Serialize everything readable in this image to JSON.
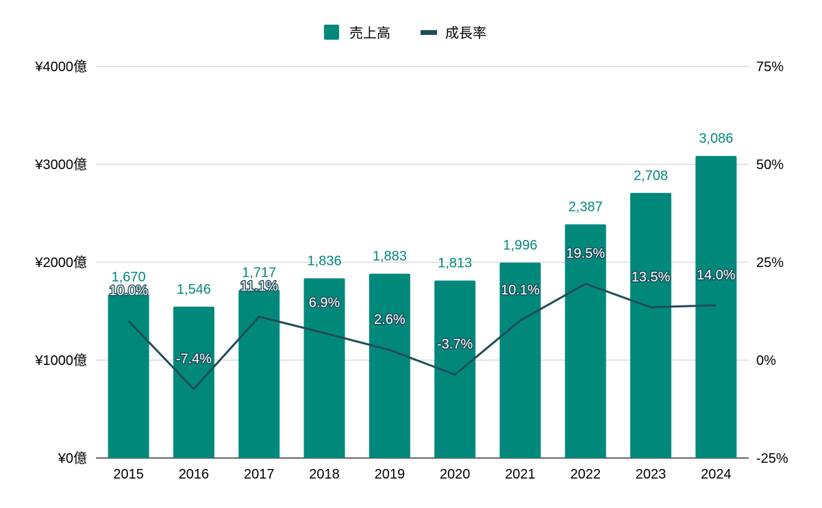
{
  "colors": {
    "bar": "#00897b",
    "line": "#1f4d57",
    "grid": "#c8c8c8",
    "axis": "#333333"
  },
  "legend": {
    "sales_label": "売上高",
    "growth_label": "成長率"
  },
  "chart_data": {
    "type": "bar",
    "categories": [
      "2015",
      "2016",
      "2017",
      "2018",
      "2019",
      "2020",
      "2021",
      "2022",
      "2023",
      "2024"
    ],
    "series": [
      {
        "name": "売上高",
        "type": "bar",
        "axis": "left",
        "values": [
          1670,
          1546,
          1717,
          1836,
          1883,
          1813,
          1996,
          2387,
          2708,
          3086
        ],
        "labels": [
          "1,670",
          "1,546",
          "1,717",
          "1,836",
          "1,883",
          "1,813",
          "1,996",
          "2,387",
          "2,708",
          "3,086"
        ]
      },
      {
        "name": "成長率",
        "type": "line",
        "axis": "right",
        "values": [
          10.0,
          -7.4,
          11.1,
          6.9,
          2.6,
          -3.7,
          10.1,
          19.5,
          13.5,
          14.0
        ],
        "labels": [
          "10.0%",
          "-7.4%",
          "11.1%",
          "6.9%",
          "2.6%",
          "-3.7%",
          "10.1%",
          "19.5%",
          "13.5%",
          "14.0%"
        ]
      }
    ],
    "y_left": {
      "lim": [
        0,
        4000
      ],
      "ticks": [
        0,
        1000,
        2000,
        3000,
        4000
      ],
      "tick_labels": [
        "¥0億",
        "¥1000億",
        "¥2000億",
        "¥3000億",
        "¥4000億"
      ]
    },
    "y_right": {
      "lim": [
        -25,
        75
      ],
      "ticks": [
        -25,
        0,
        25,
        50,
        75
      ],
      "tick_labels": [
        "-25%",
        "0%",
        "25%",
        "50%",
        "75%"
      ]
    },
    "grid": true,
    "legend_position": "top"
  }
}
